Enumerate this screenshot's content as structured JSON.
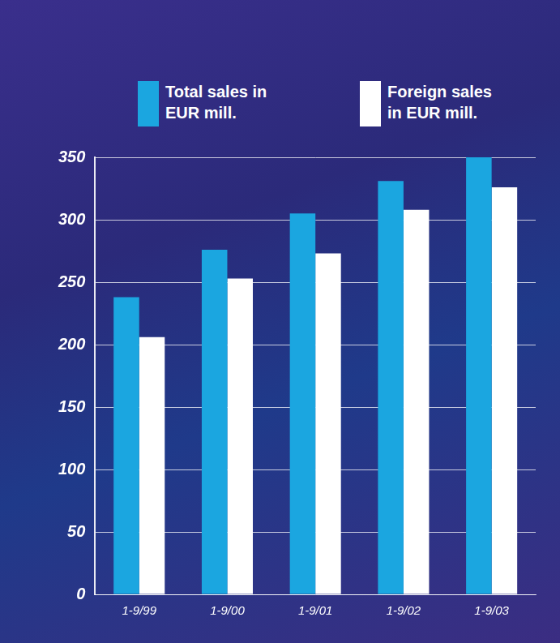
{
  "chart_data": {
    "type": "bar",
    "categories": [
      "1-9/99",
      "1-9/00",
      "1-9/01",
      "1-9/02",
      "1-9/03"
    ],
    "series": [
      {
        "name": "Total sales in EUR mill.",
        "color": "#1ba6e0",
        "values": [
          238,
          276,
          305,
          331,
          350
        ]
      },
      {
        "name": "Foreign sales in EUR mill.",
        "color": "#ffffff",
        "values": [
          206,
          253,
          273,
          308,
          326
        ]
      }
    ],
    "ylim": [
      0,
      350
    ],
    "yticks": [
      0,
      50,
      100,
      150,
      200,
      250,
      300,
      350
    ],
    "grid": true,
    "legend": "top"
  }
}
